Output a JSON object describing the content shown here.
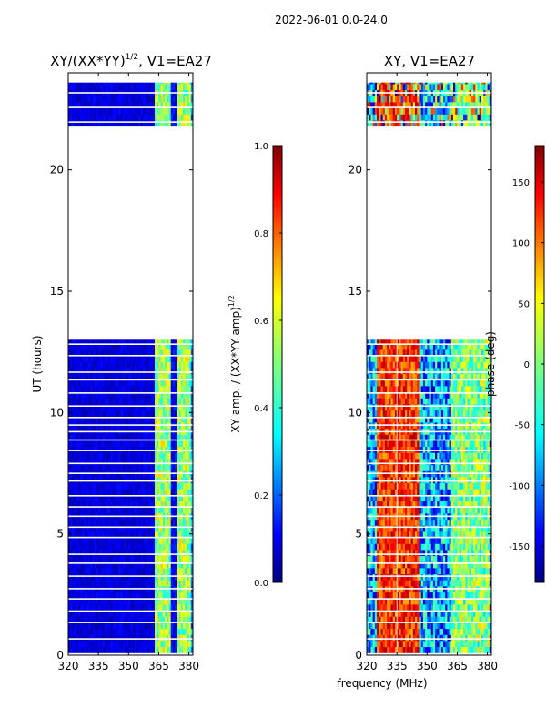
{
  "figure": {
    "suptitle": "2022-06-01 0.0-24.0",
    "xlabel": "frequency (MHz)"
  },
  "colors": {
    "jet": [
      "#00007f",
      "#0000ff",
      "#007fff",
      "#00ffff",
      "#7fff7f",
      "#ffff00",
      "#ff7f00",
      "#ff0000",
      "#7f0000"
    ],
    "frame": "#000000",
    "gap": "#ffffff"
  },
  "chart_data": [
    {
      "type": "heatmap",
      "title": "XY/(XX*YY)",
      "title_sup": "1/2",
      "title_suffix": ", V1=EA27",
      "xlabel": "",
      "ylabel": "UT (hours)",
      "xlim": [
        320,
        382
      ],
      "ylim": [
        0,
        24
      ],
      "xticks": [
        320,
        335,
        350,
        365,
        380
      ],
      "yticks": [
        0,
        5,
        10,
        15,
        20
      ],
      "data_gap_hours": [
        13.0,
        21.8
      ],
      "colorbar": {
        "label": "XY amp. / (XX*YY amp)",
        "label_sup": "1/2",
        "range": [
          0.0,
          1.0
        ],
        "ticks": [
          "0.0",
          "0.2",
          "0.4",
          "0.6",
          "0.8",
          "1.0"
        ],
        "tick_values": [
          0.0,
          0.2,
          0.4,
          0.6,
          0.8,
          1.0
        ]
      },
      "bright_channels_mhz": [
        364,
        367,
        370,
        373,
        376,
        379
      ]
    },
    {
      "type": "heatmap",
      "title": "XY, V1=EA27",
      "xlabel": "frequency (MHz)",
      "ylabel": "",
      "xlim": [
        320,
        382
      ],
      "ylim": [
        0,
        24
      ],
      "xticks": [
        320,
        335,
        350,
        365,
        380
      ],
      "yticks": [
        0,
        5,
        10,
        15,
        20
      ],
      "data_gap_hours": [
        13.0,
        21.8
      ],
      "colorbar": {
        "label": "phase (deg)",
        "range": [
          -180,
          180
        ],
        "ticks": [
          "-150",
          "-100",
          "-50",
          "0",
          "50",
          "100",
          "150"
        ],
        "tick_values": [
          -150,
          -100,
          -50,
          0,
          50,
          100,
          150
        ]
      }
    }
  ]
}
